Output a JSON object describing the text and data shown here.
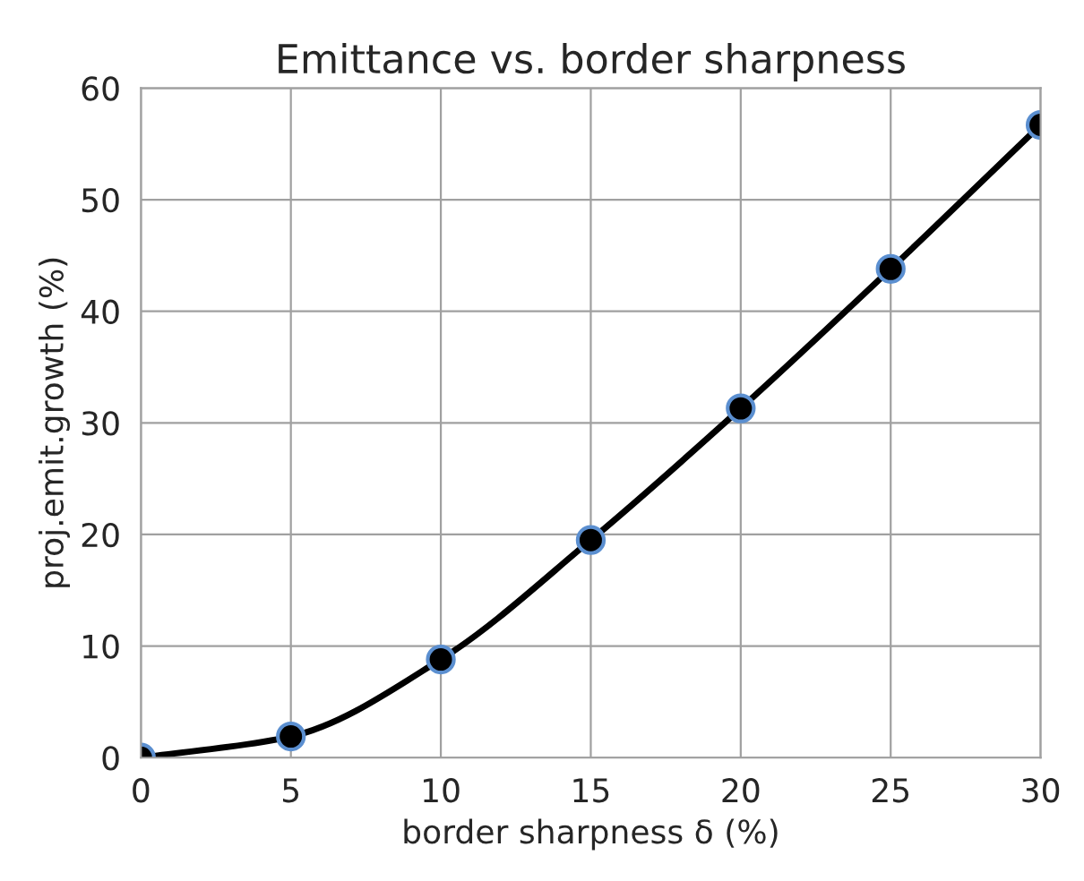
{
  "chart_data": {
    "type": "line",
    "title": "Emittance vs. border sharpness",
    "xlabel": "border sharpness δ (%)",
    "ylabel": "proj.emit.growth (%)",
    "x": [
      0,
      5,
      10,
      15,
      20,
      25,
      30
    ],
    "series": [
      {
        "color": "#000000",
        "values": [
          0,
          1.9,
          8.8,
          19.5,
          31.3,
          43.8,
          56.7
        ]
      }
    ],
    "marker": "circle",
    "line_style": "solid",
    "grid": true,
    "xlim": [
      0,
      30
    ],
    "xticks": [
      0,
      5,
      10,
      15,
      20,
      25,
      30
    ],
    "ylim": [
      0,
      60
    ],
    "yticks": [
      0,
      10,
      20,
      30,
      40,
      50,
      60
    ]
  }
}
